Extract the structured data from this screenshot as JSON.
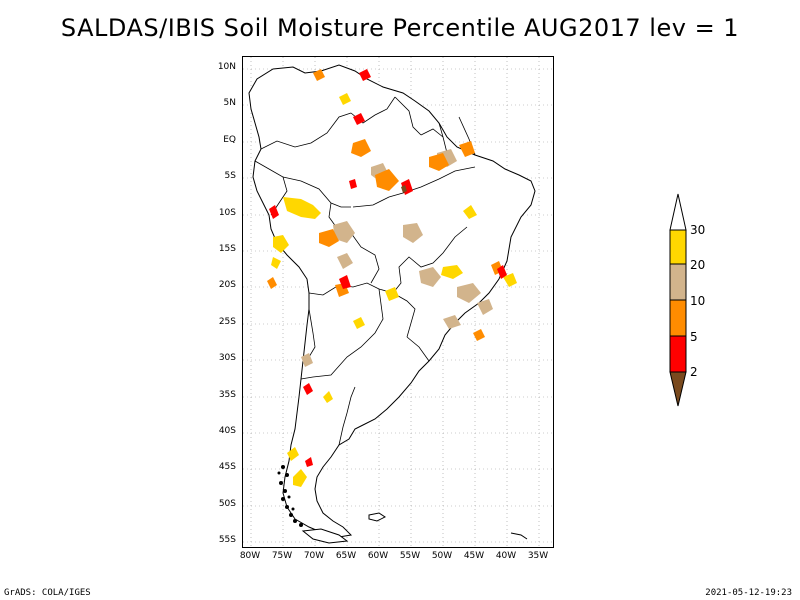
{
  "title": "SALDAS/IBIS Soil Moisture Percentile AUG2017 lev = 1",
  "map": {
    "lat_ticks": [
      "10N",
      "5N",
      "EQ",
      "5S",
      "10S",
      "15S",
      "20S",
      "25S",
      "30S",
      "35S",
      "40S",
      "45S",
      "50S",
      "55S"
    ],
    "lon_ticks": [
      "80W",
      "75W",
      "70W",
      "65W",
      "60W",
      "55W",
      "50W",
      "45W",
      "40W",
      "35W"
    ],
    "extent": {
      "lon_min": -80,
      "lon_max": -33,
      "lat_min": -56,
      "lat_max": 12
    }
  },
  "colorbar": {
    "levels": [
      "2",
      "5",
      "10",
      "20",
      "30"
    ],
    "colors": {
      "below_2": "#7a4a1e",
      "2_5": "#ff0000",
      "5_10": "#ff8c00",
      "10_20": "#d2b48c",
      "20_30": "#ffd700",
      "above_30": "#ffffff"
    }
  },
  "footer": {
    "left": "GrADS: COLA/IGES",
    "right": "2021-05-12-19:23"
  }
}
